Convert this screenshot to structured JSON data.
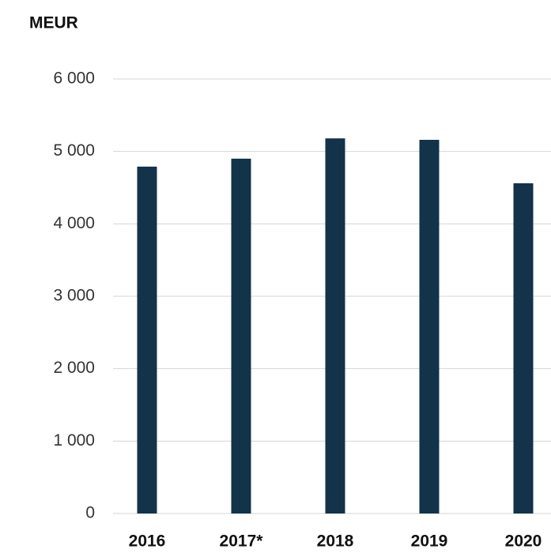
{
  "chart_data": {
    "type": "bar",
    "y_axis_label": "MEUR",
    "categories": [
      "2016",
      "2017*",
      "2018",
      "2019",
      "2020"
    ],
    "values": [
      4790,
      4900,
      5180,
      5160,
      4560
    ],
    "color": "#12334a",
    "ylim": [
      0,
      6000
    ],
    "yticks": [
      0,
      {
        "value": 1000,
        "label": "1 000"
      },
      {
        "value": 2000,
        "label": "2 000"
      },
      {
        "value": 3000,
        "label": "3 000"
      },
      {
        "value": 4000,
        "label": "4 000"
      },
      {
        "value": 5000,
        "label": "5 000"
      },
      {
        "value": 6000,
        "label": "6 000"
      }
    ],
    "grid": true
  }
}
